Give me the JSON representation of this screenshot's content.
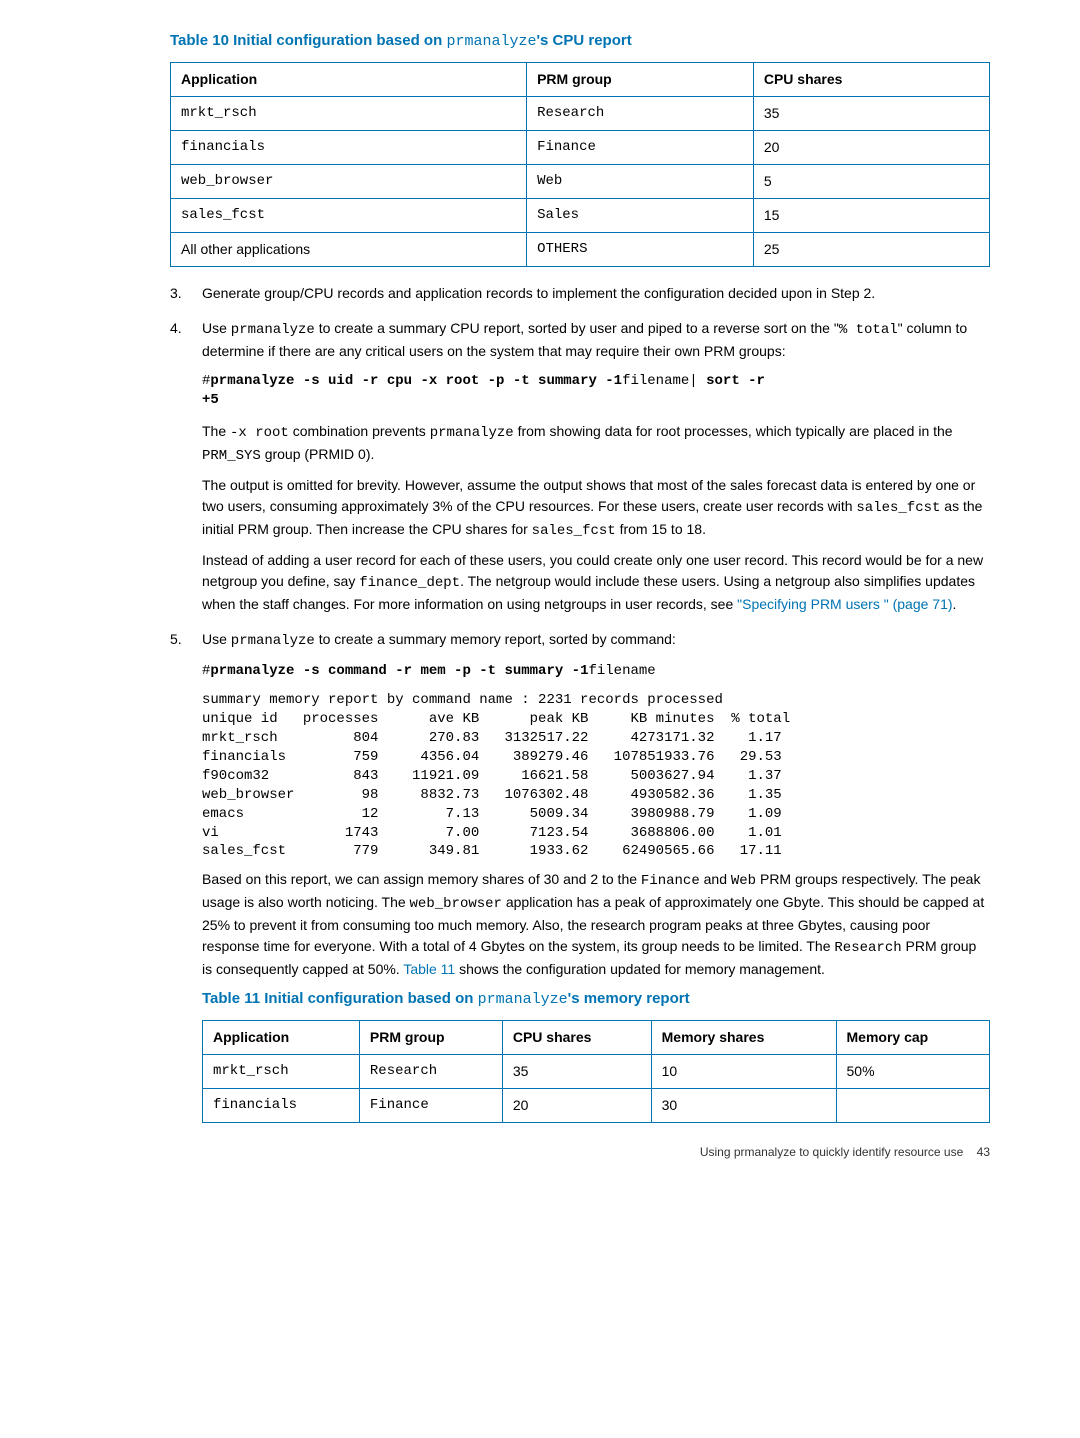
{
  "tables": {
    "t10": {
      "title_prefix": "Table 10 Initial configuration based on ",
      "title_mono": "prmanalyze",
      "title_suffix": "'s CPU report",
      "columns": [
        "Application",
        "PRM group",
        "CPU shares"
      ],
      "rows": [
        [
          "mrkt_rsch",
          "Research",
          "35"
        ],
        [
          "financials",
          "Finance",
          "20"
        ],
        [
          "web_browser",
          "Web",
          "5"
        ],
        [
          "sales_fcst",
          "Sales",
          "15"
        ],
        [
          "All other applications",
          "OTHERS",
          "25"
        ]
      ],
      "mono_cols": [
        0,
        1
      ]
    },
    "t11": {
      "title_prefix": "Table 11 Initial configuration based on ",
      "title_mono": "prmanalyze",
      "title_suffix": "'s memory report",
      "columns": [
        "Application",
        "PRM group",
        "CPU shares",
        "Memory shares",
        "Memory cap"
      ],
      "rows": [
        [
          "mrkt_rsch",
          "Research",
          "35",
          "10",
          "50%"
        ],
        [
          "financials",
          "Finance",
          "20",
          "30",
          ""
        ]
      ],
      "mono_cols": [
        0,
        1
      ]
    }
  },
  "steps": {
    "s3": "Generate group/CPU records and application records to implement the configuration decided upon in Step 2.",
    "s4_p1_a": "Use ",
    "s4_p1_b": "prmanalyze",
    "s4_p1_c": " to create a summary CPU report, sorted by user and piped to a reverse sort on the \"",
    "s4_p1_d": "% total",
    "s4_p1_e": "\" column to determine if there are any critical users on the system that may require their own PRM groups:",
    "s4_code_a": "#",
    "s4_code_b": "prmanalyze -s uid -r cpu -x root -p -t summary -1",
    "s4_code_c": "filename",
    "s4_code_d": "| ",
    "s4_code_e": "sort -r\n+5",
    "s4_p2_a": "The ",
    "s4_p2_b": "-x root",
    "s4_p2_c": " combination prevents ",
    "s4_p2_d": "prmanalyze",
    "s4_p2_e": " from showing data for root processes, which typically are placed in the ",
    "s4_p2_f": "PRM_SYS",
    "s4_p2_g": " group (PRMID 0).",
    "s4_p3_a": "The output is omitted for brevity. However, assume the output shows that most of the sales forecast data is entered by one or two users, consuming approximately 3% of the CPU resources. For these users, create user records with ",
    "s4_p3_b": "sales_fcst",
    "s4_p3_c": " as the initial PRM group. Then increase the CPU shares for ",
    "s4_p3_d": "sales_fcst",
    "s4_p3_e": " from 15 to 18.",
    "s4_p4_a": "Instead of adding a user record for each of these users, you could create only one user record. This record would be for a new netgroup you define, say ",
    "s4_p4_b": "finance_dept",
    "s4_p4_c": ". The netgroup would include these users. Using a netgroup also simplifies updates when the staff changes. For more information on using netgroups in user records, see ",
    "s4_p4_link": "\"Specifying PRM users \" (page 71)",
    "s4_p4_d": ".",
    "s5_p1_a": "Use ",
    "s5_p1_b": "prmanalyze",
    "s5_p1_c": " to create a summary memory report, sorted by command:",
    "s5_code_a": "#",
    "s5_code_b": "prmanalyze -s command -r mem -p -t summary -1",
    "s5_code_c": "filename",
    "s5_output": "summary memory report by command name : 2231 records processed\nunique id   processes      ave KB      peak KB     KB minutes  % total\nmrkt_rsch         804      270.83   3132517.22     4273171.32    1.17\nfinancials        759     4356.04    389279.46   107851933.76   29.53\nf90com32          843    11921.09     16621.58     5003627.94    1.37\nweb_browser        98     8832.73   1076302.48     4930582.36    1.35\nemacs              12        7.13      5009.34     3980988.79    1.09\nvi               1743        7.00      7123.54     3688806.00    1.01\nsales_fcst        779      349.81      1933.62    62490565.66   17.11",
    "s5_p2_a": "Based on this report, we can assign memory shares of 30 and 2 to the ",
    "s5_p2_b": "Finance",
    "s5_p2_c": " and ",
    "s5_p2_d": "Web",
    "s5_p2_e": " PRM groups respectively. The peak usage is also worth noticing. The ",
    "s5_p2_f": "web_browser",
    "s5_p2_g": " application has a peak of approximately one Gbyte. This should be capped at 25% to prevent it from consuming too much memory. Also, the research program peaks at three Gbytes, causing poor response time for everyone. With a total of 4 Gbytes on the system, its group needs to be limited. The ",
    "s5_p2_h": "Research",
    "s5_p2_i": " PRM group is consequently capped at 50%. ",
    "s5_p2_link": "Table 11",
    "s5_p2_j": " shows the configuration updated for memory management."
  },
  "footer": {
    "text": "Using prmanalyze to quickly identify resource use",
    "page": "43"
  }
}
